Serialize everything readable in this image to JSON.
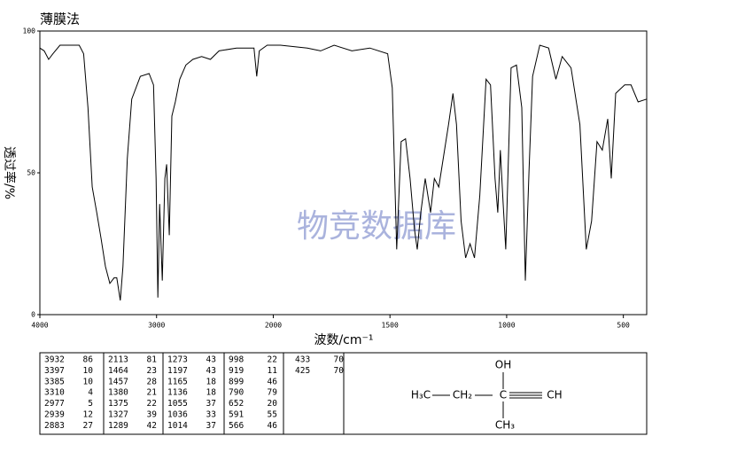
{
  "chart_data": {
    "type": "line",
    "title": "薄膜法",
    "watermark": "物竞数据库",
    "xlabel": "波数/cm⁻¹",
    "ylabel": "透过率/%",
    "xlim": [
      4000,
      400
    ],
    "xscale_break": 2000,
    "xticks": [
      4000,
      3000,
      2000,
      1500,
      1000,
      500
    ],
    "ylim": [
      0,
      100
    ],
    "yticks": [
      0,
      50,
      100
    ],
    "color": "#000000",
    "x": [
      4000,
      3963,
      3925,
      3888,
      3828,
      3663,
      3625,
      3588,
      3551,
      3513,
      3476,
      3438,
      3400,
      3363,
      3341,
      3311,
      3288,
      3251,
      3213,
      3139,
      3064,
      3026,
      3004,
      2989,
      2974,
      2951,
      2929,
      2914,
      2891,
      2869,
      2839,
      2801,
      2749,
      2689,
      2614,
      2539,
      2464,
      2315,
      2165,
      2142,
      2120,
      2052,
      1969,
      1854,
      1797,
      1739,
      1663,
      1586,
      1510,
      1490,
      1471,
      1452,
      1433,
      1414,
      1395,
      1383,
      1368,
      1349,
      1326,
      1310,
      1291,
      1272,
      1249,
      1230,
      1215,
      1195,
      1176,
      1157,
      1138,
      1115,
      1088,
      1069,
      1050,
      1038,
      1027,
      1015,
      1004,
      981,
      958,
      935,
      920,
      904,
      889,
      858,
      820,
      789,
      762,
      724,
      686,
      659,
      636,
      613,
      590,
      567,
      552,
      533,
      494,
      467,
      437,
      400
    ],
    "y": [
      94,
      93,
      90,
      92,
      95,
      95,
      92,
      73,
      45,
      36,
      27,
      17,
      11,
      13,
      13,
      5,
      17,
      55,
      76,
      84,
      85,
      81,
      48,
      6,
      39,
      12,
      48,
      53,
      28,
      70,
      75,
      83,
      88,
      90,
      91,
      90,
      93,
      94,
      94,
      84,
      93,
      95,
      95,
      94,
      93,
      95,
      93,
      94,
      92,
      80,
      23,
      61,
      62,
      48,
      30,
      23,
      36,
      48,
      36,
      48,
      45,
      55,
      67,
      78,
      67,
      33,
      20,
      25,
      20,
      42,
      83,
      81,
      48,
      36,
      58,
      39,
      23,
      87,
      88,
      73,
      12,
      51,
      84,
      95,
      94,
      83,
      91,
      87,
      67,
      23,
      33,
      61,
      58,
      69,
      48,
      78,
      81,
      81,
      75,
      76
    ]
  },
  "peak_table": [
    [
      [
        3932,
        86
      ],
      [
        3397,
        10
      ],
      [
        3385,
        10
      ],
      [
        3310,
        4
      ],
      [
        2977,
        5
      ],
      [
        2939,
        12
      ],
      [
        2883,
        27
      ]
    ],
    [
      [
        2113,
        81
      ],
      [
        1464,
        23
      ],
      [
        1457,
        28
      ],
      [
        1380,
        21
      ],
      [
        1375,
        22
      ],
      [
        1327,
        39
      ],
      [
        1289,
        42
      ]
    ],
    [
      [
        1273,
        43
      ],
      [
        1197,
        43
      ],
      [
        1165,
        18
      ],
      [
        1136,
        18
      ],
      [
        1055,
        37
      ],
      [
        1036,
        33
      ],
      [
        1014,
        37
      ]
    ],
    [
      [
        998,
        22
      ],
      [
        919,
        11
      ],
      [
        899,
        46
      ],
      [
        790,
        79
      ],
      [
        652,
        20
      ],
      [
        591,
        55
      ],
      [
        566,
        46
      ]
    ],
    [
      [
        433,
        70
      ],
      [
        425,
        70
      ]
    ]
  ],
  "structure": {
    "oh": "OH",
    "left": "H₃C",
    "mid": "CH₂",
    "center": "C",
    "right": "CH",
    "bottom": "CH₃"
  }
}
